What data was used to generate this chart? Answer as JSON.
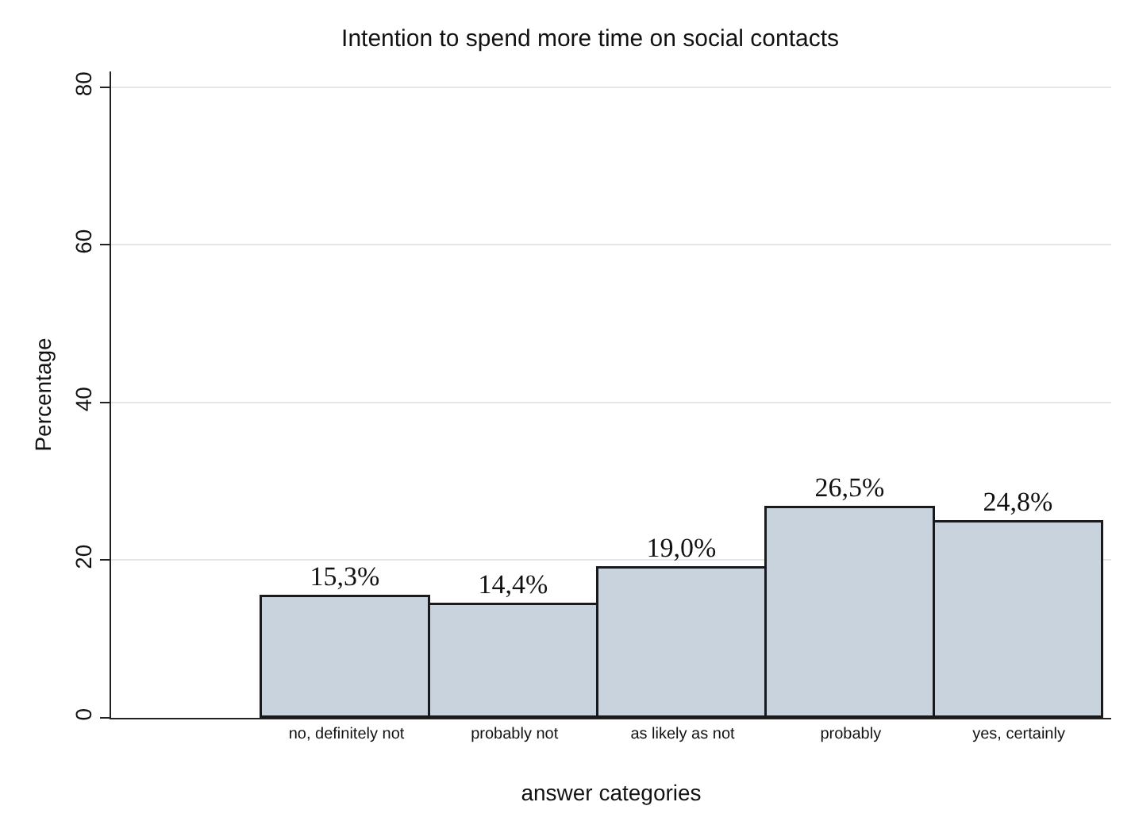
{
  "chart_data": {
    "type": "bar",
    "title": "Intention to spend more time on social contacts",
    "xlabel": "answer categories",
    "ylabel": "Percentage",
    "categories": [
      "no, definitely not",
      "probably not",
      "as likely as not",
      "probably",
      "yes, certainly"
    ],
    "values": [
      15.3,
      14.4,
      19.0,
      26.5,
      24.8
    ],
    "value_labels": [
      "15,3%",
      "14,4%",
      "19,0%",
      "26,5%",
      "24,8%"
    ],
    "color": "#c8d3de",
    "ylim": [
      0,
      82
    ],
    "yticks": [
      0,
      20,
      40,
      60,
      80
    ],
    "grid": "y"
  }
}
